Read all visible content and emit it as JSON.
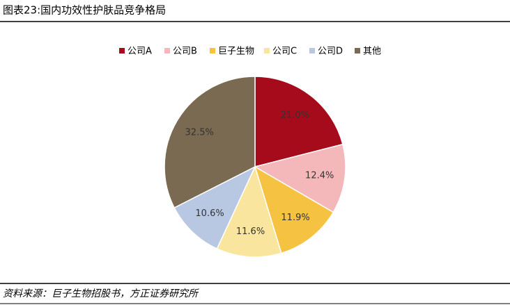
{
  "chart_data": {
    "type": "pie",
    "title": "图表23:国内功效性护肤品竞争格局",
    "categories": [
      "公司A",
      "公司B",
      "巨子生物",
      "公司C",
      "公司D",
      "其他"
    ],
    "values": [
      21.0,
      12.4,
      11.9,
      11.6,
      10.6,
      32.5
    ],
    "value_labels": [
      "21.0%",
      "12.4%",
      "11.9%",
      "11.6%",
      "10.6%",
      "32.5%"
    ],
    "colors": [
      "#a50b1a",
      "#f4b8bb",
      "#f5c242",
      "#f9e59e",
      "#b8c7e2",
      "#7b6a52"
    ],
    "legend": "top",
    "source": "资料来源：巨子生物招股书，方正证券研究所"
  }
}
